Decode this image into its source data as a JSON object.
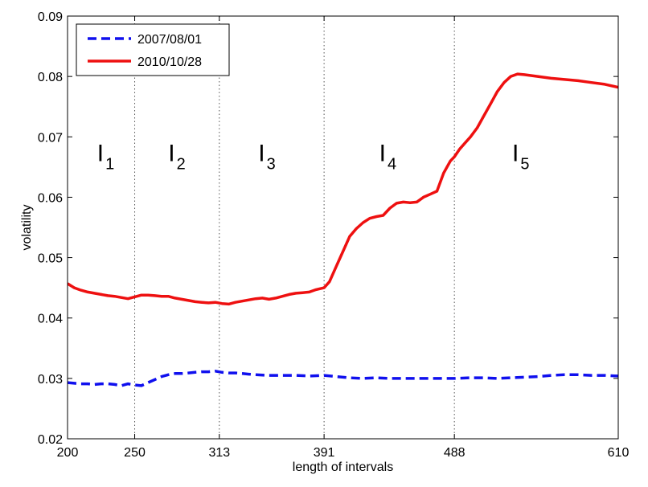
{
  "chart_data": {
    "type": "line",
    "xlabel": "length of intervals",
    "ylabel": "volatility",
    "xlim": [
      200,
      610
    ],
    "ylim": [
      0.02,
      0.09
    ],
    "xticks": [
      200,
      250,
      313,
      391,
      488,
      610
    ],
    "yticks": [
      "0.02",
      "0.03",
      "0.04",
      "0.05",
      "0.06",
      "0.07",
      "0.08",
      "0.09"
    ],
    "vlines": [
      250,
      313,
      391,
      488
    ],
    "legend_position": "top-left",
    "grid": false,
    "interval_labels": [
      {
        "letter": "I",
        "sub": "1",
        "x": 222,
        "y": 0.066
      },
      {
        "letter": "I",
        "sub": "2",
        "x": 275,
        "y": 0.066
      },
      {
        "letter": "I",
        "sub": "3",
        "x": 342,
        "y": 0.066
      },
      {
        "letter": "I",
        "sub": "4",
        "x": 432,
        "y": 0.066
      },
      {
        "letter": "I",
        "sub": "5",
        "x": 531,
        "y": 0.066
      }
    ],
    "series": [
      {
        "name": "2007/08/01",
        "color": "#1010ee",
        "style": "dashed",
        "x": [
          200,
          205,
          210,
          215,
          220,
          225,
          230,
          235,
          240,
          245,
          250,
          255,
          260,
          265,
          270,
          275,
          280,
          285,
          290,
          295,
          300,
          305,
          310,
          315,
          320,
          325,
          330,
          335,
          340,
          350,
          360,
          370,
          380,
          391,
          400,
          410,
          420,
          430,
          440,
          450,
          460,
          470,
          480,
          488,
          500,
          510,
          520,
          530,
          540,
          550,
          560,
          570,
          580,
          590,
          600,
          610
        ],
        "y": [
          0.0293,
          0.0292,
          0.0291,
          0.0291,
          0.029,
          0.0291,
          0.0291,
          0.029,
          0.0288,
          0.0291,
          0.0289,
          0.0288,
          0.0293,
          0.0298,
          0.0303,
          0.0306,
          0.0308,
          0.0308,
          0.0309,
          0.031,
          0.0311,
          0.0311,
          0.0312,
          0.031,
          0.0309,
          0.0309,
          0.0308,
          0.0307,
          0.0306,
          0.0305,
          0.0305,
          0.0305,
          0.0304,
          0.0305,
          0.0303,
          0.0301,
          0.03,
          0.0301,
          0.03,
          0.03,
          0.03,
          0.03,
          0.03,
          0.03,
          0.0301,
          0.0301,
          0.03,
          0.0301,
          0.0302,
          0.0303,
          0.0305,
          0.0306,
          0.0306,
          0.0305,
          0.0305,
          0.0304
        ]
      },
      {
        "name": "2010/10/28",
        "color": "#ee1010",
        "style": "solid",
        "x": [
          200,
          205,
          210,
          215,
          220,
          225,
          230,
          235,
          240,
          245,
          250,
          255,
          260,
          265,
          270,
          275,
          280,
          285,
          290,
          295,
          300,
          305,
          310,
          315,
          320,
          325,
          330,
          335,
          340,
          345,
          350,
          355,
          360,
          365,
          370,
          375,
          380,
          385,
          391,
          395,
          400,
          405,
          410,
          415,
          420,
          425,
          430,
          435,
          440,
          445,
          450,
          455,
          460,
          465,
          470,
          475,
          480,
          485,
          488,
          492,
          496,
          500,
          505,
          510,
          515,
          520,
          525,
          530,
          535,
          540,
          550,
          560,
          570,
          580,
          590,
          600,
          610
        ],
        "y": [
          0.0457,
          0.045,
          0.0446,
          0.0443,
          0.0441,
          0.0439,
          0.0437,
          0.0436,
          0.0434,
          0.0432,
          0.0435,
          0.0438,
          0.0438,
          0.0437,
          0.0436,
          0.0436,
          0.0433,
          0.0431,
          0.0429,
          0.0427,
          0.0426,
          0.0425,
          0.0426,
          0.0424,
          0.0423,
          0.0426,
          0.0428,
          0.043,
          0.0432,
          0.0433,
          0.0431,
          0.0433,
          0.0436,
          0.0439,
          0.0441,
          0.0442,
          0.0443,
          0.0447,
          0.045,
          0.046,
          0.0485,
          0.051,
          0.0535,
          0.0548,
          0.0558,
          0.0565,
          0.0568,
          0.057,
          0.0582,
          0.059,
          0.0592,
          0.0591,
          0.0592,
          0.06,
          0.0605,
          0.061,
          0.064,
          0.066,
          0.0667,
          0.068,
          0.069,
          0.07,
          0.0715,
          0.0735,
          0.0755,
          0.0775,
          0.079,
          0.08,
          0.0804,
          0.0803,
          0.08,
          0.0797,
          0.0795,
          0.0793,
          0.079,
          0.0787,
          0.0782
        ]
      }
    ]
  }
}
